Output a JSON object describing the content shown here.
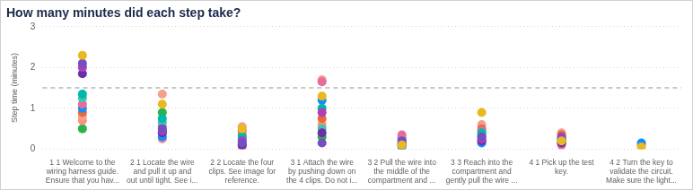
{
  "chart_data": {
    "type": "scatter",
    "title": "How many minutes did each step take?",
    "y_label": "Step time (minutes)",
    "categories": [
      "1 1 Welcome to the\nwiring harness guide.\nEnsure that you hav...",
      "2 1 Locate the wire\nand pull it up and\nout until tight. See i...",
      "2 2 Locate the four\nclips. See image for\nreference.",
      "3 1 Attach the wire\nby pushing down on\nthe 4 clips. Do not i...",
      "3 2 Pull the wire into\nthe middle of the\ncompartment and ...",
      "3 3 Reach into the\ncompartment and\ngently pull the wire ...",
      "4 1 Pick up the test\nkey.",
      "4 2 Turn the key to\nvalidate the circuit.\nMake sure the light..."
    ],
    "series": [
      {
        "color": "#e8b920",
        "values": [
          2.3,
          1.1,
          0.5,
          1.3,
          0.1,
          0.9,
          0.2,
          0.05
        ]
      },
      {
        "color": "#744ec2",
        "values": [
          2.1,
          0.5,
          0.15,
          0.15,
          0.2,
          0.3,
          0.25,
          null
        ]
      },
      {
        "color": "#b03eb8",
        "values": [
          2.0,
          0.45,
          0.2,
          0.9,
          0.15,
          0.25,
          0.3,
          null
        ]
      },
      {
        "color": "#6b2fa8",
        "values": [
          1.85,
          0.4,
          0.1,
          0.4,
          0.1,
          0.2,
          0.15,
          null
        ]
      },
      {
        "color": "#01b8aa",
        "values": [
          1.35,
          0.75,
          0.3,
          1.0,
          0.05,
          0.4,
          0.2,
          null
        ]
      },
      {
        "color": "#3fc5b0",
        "values": [
          1.25,
          0.65,
          null,
          0.5,
          null,
          0.3,
          null,
          null
        ]
      },
      {
        "color": "#e66c9a",
        "values": [
          1.1,
          0.55,
          0.35,
          1.65,
          0.35,
          0.45,
          0.1,
          null
        ]
      },
      {
        "color": "#118dff",
        "values": [
          1.0,
          0.3,
          0.1,
          1.2,
          0.25,
          0.15,
          0.25,
          0.15
        ]
      },
      {
        "color": "#e66c37",
        "values": [
          0.9,
          0.4,
          0.45,
          0.75,
          0.1,
          0.5,
          0.35,
          0.1
        ]
      },
      {
        "color": "#f5a08a",
        "values": [
          0.8,
          1.35,
          0.55,
          1.7,
          0.3,
          0.6,
          0.4,
          null
        ]
      },
      {
        "color": "#ff8f80",
        "values": [
          0.7,
          0.25,
          0.05,
          0.6,
          null,
          0.2,
          null,
          null
        ]
      },
      {
        "color": "#2bb34a",
        "values": [
          0.5,
          0.9,
          0.25,
          0.3,
          0.15,
          0.35,
          0.15,
          null
        ]
      }
    ],
    "threshold": 1.5,
    "ylim": [
      0,
      3
    ],
    "yticks": [
      0,
      1,
      2,
      3
    ],
    "grid": true,
    "marker": "circle"
  }
}
